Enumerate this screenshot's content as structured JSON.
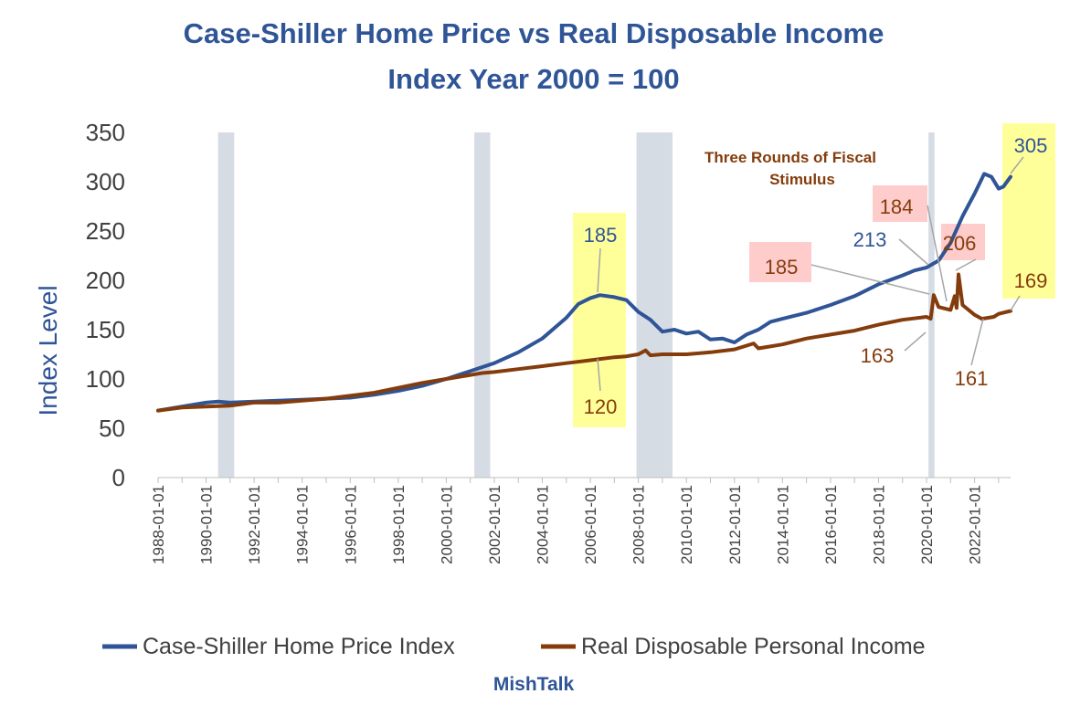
{
  "chart_data": {
    "type": "line",
    "title": "Case-Shiller Home Price vs Real Disposable Income",
    "subtitle": "Index Year 2000 = 100",
    "ylabel": "Index Level",
    "xlabel": "",
    "ylim": [
      0,
      350
    ],
    "yticks": [
      "0",
      "50",
      "100",
      "150",
      "200",
      "250",
      "300",
      "350"
    ],
    "xticks": [
      "1988-01-01",
      "1990-01-01",
      "1992-01-01",
      "1994-01-01",
      "1996-01-01",
      "1998-01-01",
      "2000-01-01",
      "2002-01-01",
      "2004-01-01",
      "2006-01-01",
      "2008-01-01",
      "2010-01-01",
      "2012-01-01",
      "2014-01-01",
      "2016-01-01",
      "2018-01-01",
      "2020-01-01",
      "2022-01-01"
    ],
    "xlim": [
      1988.0,
      2023.5
    ],
    "recessions": [
      [
        1990.5,
        1991.17
      ],
      [
        2001.17,
        2001.83
      ],
      [
        2007.92,
        2009.42
      ],
      [
        2020.08,
        2020.33
      ]
    ],
    "series": [
      {
        "name": "Case-Shiller Home Price Index",
        "color": "#2f5597",
        "points": [
          [
            1988.0,
            68
          ],
          [
            1989.0,
            72
          ],
          [
            1990.0,
            76
          ],
          [
            1990.5,
            77
          ],
          [
            1991.0,
            76
          ],
          [
            1992.0,
            77
          ],
          [
            1993.0,
            78
          ],
          [
            1994.0,
            79
          ],
          [
            1995.0,
            80
          ],
          [
            1996.0,
            81
          ],
          [
            1997.0,
            84
          ],
          [
            1998.0,
            88
          ],
          [
            1999.0,
            93
          ],
          [
            2000.0,
            100
          ],
          [
            2001.0,
            108
          ],
          [
            2002.0,
            116
          ],
          [
            2003.0,
            127
          ],
          [
            2004.0,
            141
          ],
          [
            2005.0,
            162
          ],
          [
            2005.5,
            176
          ],
          [
            2006.0,
            182
          ],
          [
            2006.4,
            185
          ],
          [
            2007.0,
            183
          ],
          [
            2007.5,
            180
          ],
          [
            2008.0,
            168
          ],
          [
            2008.5,
            160
          ],
          [
            2009.0,
            148
          ],
          [
            2009.5,
            150
          ],
          [
            2010.0,
            146
          ],
          [
            2010.5,
            148
          ],
          [
            2011.0,
            140
          ],
          [
            2011.5,
            141
          ],
          [
            2012.0,
            137
          ],
          [
            2012.5,
            145
          ],
          [
            2013.0,
            150
          ],
          [
            2013.5,
            158
          ],
          [
            2014.0,
            161
          ],
          [
            2015.0,
            167
          ],
          [
            2016.0,
            175
          ],
          [
            2017.0,
            184
          ],
          [
            2018.0,
            196
          ],
          [
            2019.0,
            205
          ],
          [
            2019.5,
            210
          ],
          [
            2020.0,
            213
          ],
          [
            2020.5,
            220
          ],
          [
            2021.0,
            238
          ],
          [
            2021.5,
            265
          ],
          [
            2022.0,
            288
          ],
          [
            2022.4,
            308
          ],
          [
            2022.7,
            305
          ],
          [
            2023.0,
            293
          ],
          [
            2023.2,
            295
          ],
          [
            2023.5,
            305
          ]
        ]
      },
      {
        "name": "Real Disposable Personal Income",
        "color": "#843c0c",
        "points": [
          [
            1988.0,
            68
          ],
          [
            1989.0,
            71
          ],
          [
            1990.0,
            72
          ],
          [
            1991.0,
            73
          ],
          [
            1992.0,
            76
          ],
          [
            1993.0,
            76
          ],
          [
            1994.0,
            78
          ],
          [
            1995.0,
            80
          ],
          [
            1996.0,
            83
          ],
          [
            1997.0,
            86
          ],
          [
            1998.0,
            91
          ],
          [
            1999.0,
            96
          ],
          [
            2000.0,
            100
          ],
          [
            2001.0,
            104
          ],
          [
            2001.5,
            106
          ],
          [
            2002.0,
            107
          ],
          [
            2003.0,
            110
          ],
          [
            2004.0,
            113
          ],
          [
            2005.0,
            116
          ],
          [
            2006.0,
            119
          ],
          [
            2007.0,
            122
          ],
          [
            2007.5,
            123
          ],
          [
            2008.0,
            125
          ],
          [
            2008.3,
            129
          ],
          [
            2008.5,
            124
          ],
          [
            2009.0,
            125
          ],
          [
            2010.0,
            125
          ],
          [
            2011.0,
            127
          ],
          [
            2012.0,
            130
          ],
          [
            2012.8,
            136
          ],
          [
            2013.0,
            131
          ],
          [
            2014.0,
            135
          ],
          [
            2015.0,
            141
          ],
          [
            2016.0,
            145
          ],
          [
            2017.0,
            149
          ],
          [
            2018.0,
            155
          ],
          [
            2019.0,
            160
          ],
          [
            2020.0,
            163
          ],
          [
            2020.17,
            161
          ],
          [
            2020.3,
            185
          ],
          [
            2020.5,
            173
          ],
          [
            2021.0,
            170
          ],
          [
            2021.17,
            184
          ],
          [
            2021.25,
            172
          ],
          [
            2021.33,
            206
          ],
          [
            2021.5,
            175
          ],
          [
            2022.0,
            165
          ],
          [
            2022.3,
            161
          ],
          [
            2022.8,
            163
          ],
          [
            2023.0,
            166
          ],
          [
            2023.5,
            169
          ]
        ]
      }
    ],
    "annotations": [
      {
        "text": "305",
        "series": "Case-Shiller Home Price Index"
      },
      {
        "text": "185",
        "series": "Case-Shiller Home Price Index"
      },
      {
        "text": "213",
        "series": "Case-Shiller Home Price Index"
      },
      {
        "text": "120",
        "series": "Real Disposable Personal Income"
      },
      {
        "text": "185",
        "series": "Real Disposable Personal Income"
      },
      {
        "text": "184",
        "series": "Real Disposable Personal Income"
      },
      {
        "text": "206",
        "series": "Real Disposable Personal Income"
      },
      {
        "text": "163",
        "series": "Real Disposable Personal Income"
      },
      {
        "text": "161",
        "series": "Real Disposable Personal Income"
      },
      {
        "text": "169",
        "series": "Real Disposable Personal Income"
      }
    ],
    "note": [
      "Three Rounds of Fiscal",
      "Stimulus"
    ],
    "legend_position": "bottom",
    "grid": false
  },
  "watermark": "MishTalk",
  "colors": {
    "title": "#2f5597",
    "recession": "#d6dce4",
    "highlight_yellow": "#ffff99",
    "highlight_pink": "#ffcccc"
  }
}
